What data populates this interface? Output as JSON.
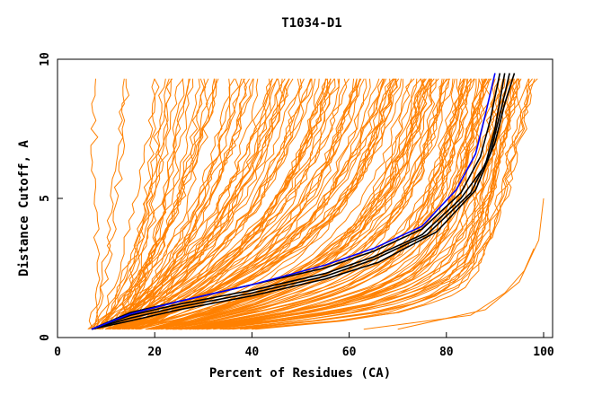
{
  "chart_data": {
    "type": "line",
    "title": "T1034-D1",
    "xlabel": "Percent of Residues (CA)",
    "ylabel": "Distance Cutoff, A",
    "xlim": [
      0,
      100
    ],
    "ylim": [
      0,
      10
    ],
    "xticks": [
      0,
      20,
      40,
      60,
      80,
      100
    ],
    "yticks": [
      0,
      5,
      10
    ],
    "grid": false,
    "colors": {
      "models": "#ff8000",
      "black": "#000000",
      "blue": "#0000ff"
    },
    "highlight_series": [
      {
        "color": "#000000",
        "points": [
          [
            7,
            0.3
          ],
          [
            15,
            0.9
          ],
          [
            25,
            1.3
          ],
          [
            40,
            1.9
          ],
          [
            55,
            2.5
          ],
          [
            65,
            3.1
          ],
          [
            75,
            3.9
          ],
          [
            83,
            5.2
          ],
          [
            87,
            6.5
          ],
          [
            89,
            7.8
          ],
          [
            91,
            9.5
          ]
        ]
      },
      {
        "color": "#000000",
        "points": [
          [
            7,
            0.3
          ],
          [
            15,
            0.8
          ],
          [
            25,
            1.2
          ],
          [
            40,
            1.7
          ],
          [
            55,
            2.3
          ],
          [
            65,
            2.9
          ],
          [
            75,
            3.7
          ],
          [
            83,
            5.0
          ],
          [
            88,
            6.2
          ],
          [
            90,
            7.5
          ],
          [
            92,
            9.5
          ]
        ]
      },
      {
        "color": "#000000",
        "points": [
          [
            7,
            0.3
          ],
          [
            15,
            0.7
          ],
          [
            25,
            1.1
          ],
          [
            40,
            1.6
          ],
          [
            55,
            2.2
          ],
          [
            65,
            2.8
          ],
          [
            76,
            3.7
          ],
          [
            85,
            5.2
          ],
          [
            89,
            6.6
          ],
          [
            91,
            8.0
          ],
          [
            93,
            9.5
          ]
        ]
      },
      {
        "color": "#000000",
        "points": [
          [
            7,
            0.3
          ],
          [
            15,
            0.6
          ],
          [
            25,
            1.0
          ],
          [
            40,
            1.5
          ],
          [
            55,
            2.1
          ],
          [
            66,
            2.7
          ],
          [
            78,
            3.8
          ],
          [
            86,
            5.3
          ],
          [
            90,
            7.0
          ],
          [
            92,
            8.4
          ],
          [
            94,
            9.5
          ]
        ]
      },
      {
        "color": "#0000ff",
        "points": [
          [
            7,
            0.3
          ],
          [
            15,
            0.85
          ],
          [
            25,
            1.3
          ],
          [
            40,
            1.9
          ],
          [
            55,
            2.6
          ],
          [
            65,
            3.2
          ],
          [
            75,
            4.0
          ],
          [
            82,
            5.3
          ],
          [
            86,
            6.6
          ],
          [
            88,
            8.0
          ],
          [
            90,
            9.5
          ]
        ]
      }
    ]
  }
}
